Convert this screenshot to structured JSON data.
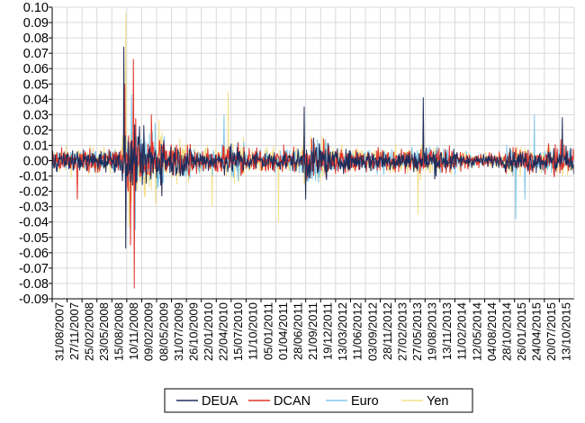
{
  "chart_data": {
    "type": "line",
    "title": "",
    "xlabel": "",
    "ylabel": "",
    "ylim": [
      -0.09,
      0.1
    ],
    "ystep": 0.01,
    "y_tick_labels": [
      "0.10",
      "0.09",
      "0.08",
      "0.07",
      "0.06",
      "0.05",
      "0.04",
      "0.03",
      "0.02",
      "0.01",
      "0.00",
      "-0.01",
      "-0.02",
      "-0.03",
      "-0.04",
      "-0.05",
      "-0.06",
      "-0.07",
      "-0.08",
      "-0.09"
    ],
    "x_tick_labels": [
      "31/08/2007",
      "27/11/2007",
      "25/02/2008",
      "23/05/2008",
      "15/08/2008",
      "10/11/2008",
      "09/02/2009",
      "08/05/2009",
      "31/07/2009",
      "26/10/2009",
      "22/01/2010",
      "22/04/2010",
      "15/07/2010",
      "11/10/2010",
      "05/01/2011",
      "01/04/2011",
      "28/06/2011",
      "21/09/2011",
      "19/12/2011",
      "13/03/2012",
      "11/06/2012",
      "03/09/2012",
      "28/11/2012",
      "27/02/2013",
      "27/05/2013",
      "19/08/2013",
      "13/11/2013",
      "11/02/2014",
      "12/05/2014",
      "04/08/2014",
      "28/10/2014",
      "26/01/2015",
      "24/04/2015",
      "20/07/2015",
      "13/10/2015"
    ],
    "x_range": [
      "2007-08-31",
      "2015-10-31"
    ],
    "grid": true,
    "legend_position": "bottom",
    "series": [
      {
        "name": "DEUA",
        "color": "#1f2d5a",
        "typical_range": [
          -0.012,
          0.012
        ],
        "notable_points": [
          [
            "2008-10-13",
            0.074
          ],
          [
            "2008-10-24",
            -0.057
          ],
          [
            "2011-08-10",
            0.035
          ],
          [
            "2011-08-18",
            -0.025
          ],
          [
            "2013-06-20",
            0.041
          ],
          [
            "2015-08-24",
            0.028
          ]
        ]
      },
      {
        "name": "DCAN",
        "color": "#e0332a",
        "typical_range": [
          -0.014,
          0.014
        ],
        "notable_points": [
          [
            "2008-12-08",
            0.066
          ],
          [
            "2008-12-12",
            -0.083
          ],
          [
            "2008-11-20",
            -0.055
          ],
          [
            "2008-10-20",
            0.05
          ],
          [
            "2009-03-20",
            0.03
          ],
          [
            "2008-01-22",
            -0.025
          ]
        ]
      },
      {
        "name": "Euro",
        "color": "#7fc7e8",
        "typical_range": [
          -0.013,
          0.013
        ],
        "notable_points": [
          [
            "2008-11-25",
            0.043
          ],
          [
            "2008-12-18",
            -0.045
          ],
          [
            "2010-05-10",
            0.03
          ],
          [
            "2014-12-01",
            -0.038
          ],
          [
            "2015-03-18",
            0.03
          ],
          [
            "2015-01-22",
            -0.025
          ]
        ]
      },
      {
        "name": "Yen",
        "color": "#f3e08a",
        "typical_range": [
          -0.015,
          0.015
        ],
        "notable_points": [
          [
            "2008-10-24",
            0.096
          ],
          [
            "2008-11-12",
            -0.043
          ],
          [
            "2010-06-01",
            0.045
          ],
          [
            "2011-03-16",
            -0.04
          ],
          [
            "2013-05-23",
            -0.035
          ],
          [
            "2010-03-01",
            -0.03
          ]
        ]
      }
    ]
  }
}
